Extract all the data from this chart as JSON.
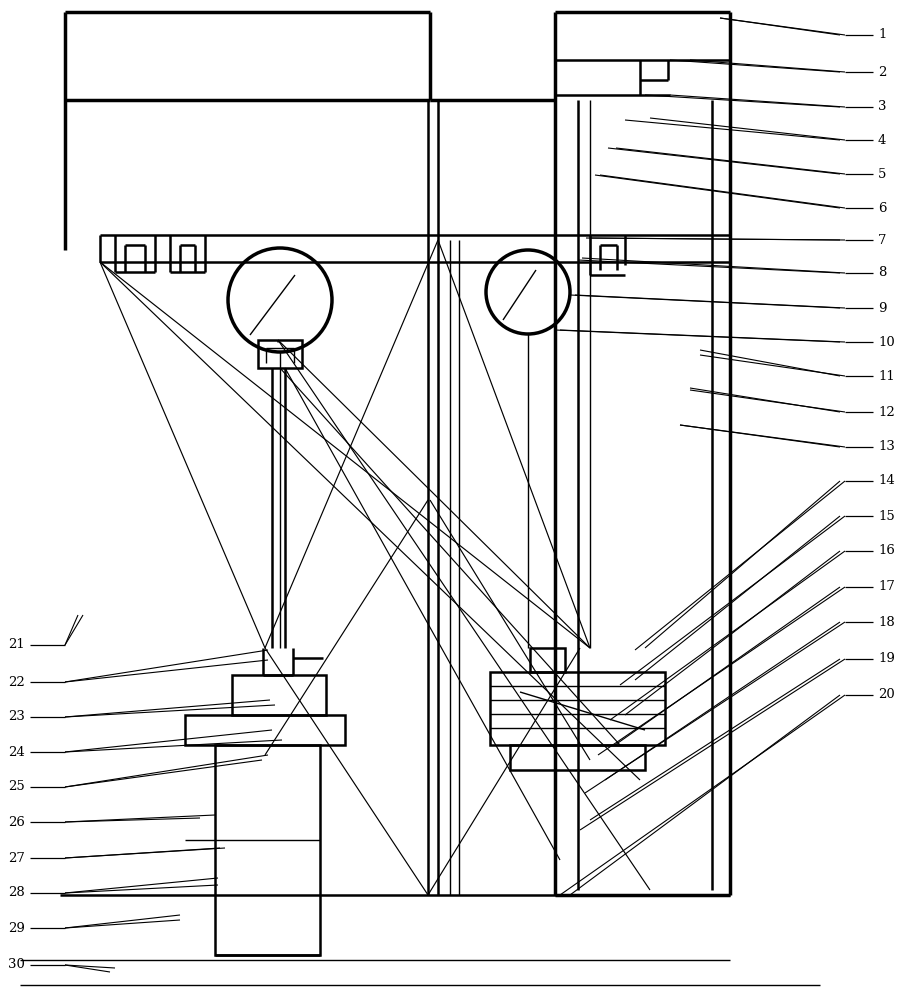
{
  "background_color": "#ffffff",
  "fig_width": 9.08,
  "fig_height": 10.0,
  "right_labels": [
    "1",
    "2",
    "3",
    "4",
    "5",
    "6",
    "7",
    "8",
    "9",
    "10",
    "11",
    "12",
    "13",
    "14",
    "15",
    "16",
    "17",
    "18",
    "19",
    "20"
  ],
  "left_labels": [
    "30",
    "29",
    "28",
    "27",
    "26",
    "25",
    "24",
    "23",
    "22",
    "21"
  ],
  "lw_thin": 1.0,
  "lw_med": 1.8,
  "lw_thick": 2.5
}
